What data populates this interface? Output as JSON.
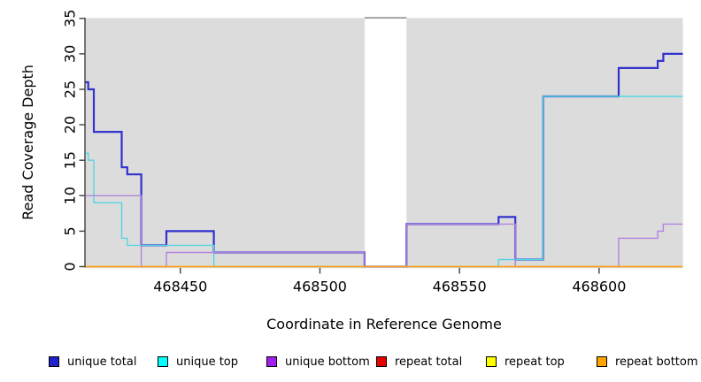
{
  "chart_data": {
    "type": "line",
    "variant": "step-coverage-plot",
    "title": "",
    "xlabel": "Coordinate in Reference Genome",
    "ylabel": "Read Coverage Depth",
    "xlim": [
      468416,
      468630
    ],
    "ylim": [
      0,
      35
    ],
    "xticks": [
      468450,
      468500,
      468550,
      468600
    ],
    "yticks": [
      0,
      5,
      10,
      15,
      20,
      25,
      30,
      35
    ],
    "grid": false,
    "legend_position": "bottom",
    "plot_bg": "#dcdcdc",
    "gap_region": {
      "from": 468516,
      "to": 468531,
      "fill": "#ffffff",
      "top_edge_color": "#8f8f8f"
    },
    "axis_color": "#404040",
    "series": [
      {
        "name": "unique total",
        "color": "#2222cc",
        "line_color": "#3232cd",
        "line_width": 2.2,
        "steps": [
          [
            468416,
            26
          ],
          [
            468417,
            25
          ],
          [
            468419,
            19
          ],
          [
            468429,
            14
          ],
          [
            468431,
            13
          ],
          [
            468436,
            3
          ],
          [
            468445,
            5
          ],
          [
            468462,
            2
          ],
          [
            468516,
            0
          ],
          [
            468531,
            6
          ],
          [
            468564,
            7
          ],
          [
            468570,
            1
          ],
          [
            468580,
            24
          ],
          [
            468607,
            28
          ],
          [
            468621,
            29
          ],
          [
            468623,
            30
          ]
        ]
      },
      {
        "name": "unique top",
        "color": "#00ffff",
        "line_color": "#55d6e2",
        "line_width": 1.4,
        "steps": [
          [
            468416,
            16
          ],
          [
            468417,
            15
          ],
          [
            468419,
            9
          ],
          [
            468429,
            4
          ],
          [
            468431,
            3
          ],
          [
            468462,
            0
          ],
          [
            468564,
            1
          ],
          [
            468580,
            24
          ]
        ]
      },
      {
        "name": "unique bottom",
        "color": "#a020f0",
        "line_color": "#b183dc",
        "line_width": 1.4,
        "steps": [
          [
            468416,
            10
          ],
          [
            468436,
            0
          ],
          [
            468445,
            2
          ],
          [
            468516,
            0
          ],
          [
            468531,
            6
          ],
          [
            468570,
            0
          ],
          [
            468607,
            4
          ],
          [
            468621,
            5
          ],
          [
            468623,
            6
          ]
        ]
      },
      {
        "name": "repeat total",
        "color": "#e60000",
        "line_color": "#e05050",
        "line_width": 1.2,
        "steps": [
          [
            468416,
            0
          ]
        ]
      },
      {
        "name": "repeat top",
        "color": "#ffff00",
        "line_color": "#eded4a",
        "line_width": 1.2,
        "steps": [
          [
            468416,
            0
          ]
        ]
      },
      {
        "name": "repeat bottom",
        "color": "#ffa500",
        "line_color": "#ffa217",
        "line_width": 1.6,
        "steps": [
          [
            468416,
            0
          ]
        ]
      }
    ]
  }
}
